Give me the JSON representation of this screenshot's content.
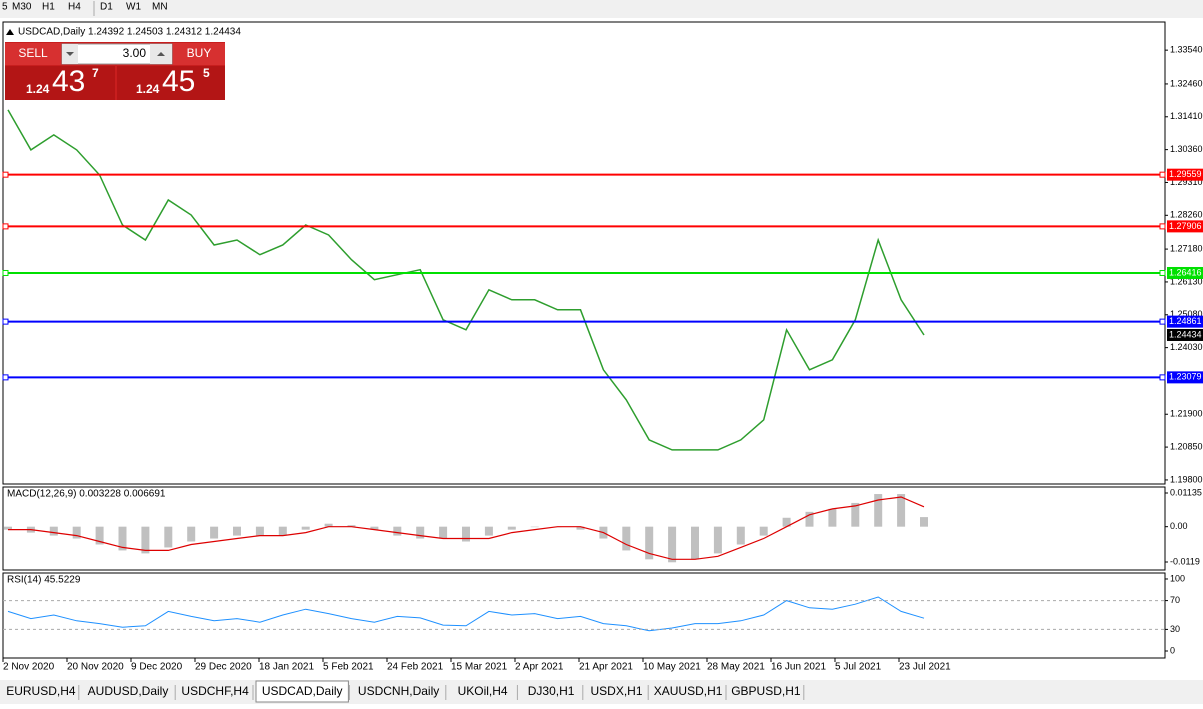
{
  "toolbar": [
    "5",
    "M30",
    "H1",
    "H4",
    "D1",
    "W1",
    "MN"
  ],
  "trade_panel": {
    "sell": "SELL",
    "buy": "BUY",
    "volume": "3.00",
    "sell_price": {
      "big": "1.24",
      "pips": "43",
      "point": "7"
    },
    "buy_price": {
      "big": "1.24",
      "pips": "45",
      "point": "5"
    }
  },
  "chart_data": [
    {
      "type": "line",
      "title": "USDCAD,Daily  1.24392 1.24503 1.24312 1.24434",
      "color": "#2e9e2e",
      "values": [
        1.3163,
        1.3035,
        1.3083,
        1.3035,
        1.2955,
        1.2795,
        1.2747,
        1.2875,
        1.2827,
        1.2731,
        1.2747,
        1.27,
        1.2731,
        1.2795,
        1.2763,
        1.2684,
        1.262,
        1.2636,
        1.2652,
        1.2492,
        1.246,
        1.2588,
        1.2556,
        1.2556,
        1.2524,
        1.2524,
        1.2332,
        1.2236,
        1.2108,
        1.2076,
        1.2076,
        1.2076,
        1.2108,
        1.2172,
        1.246,
        1.2332,
        1.2364,
        1.2492,
        1.2747,
        1.2556,
        1.24434
      ],
      "ylim": [
        1.1967,
        1.3444
      ],
      "yticks": [
        {
          "value": 1.3354,
          "label": "1.33540"
        },
        {
          "value": 1.3246,
          "label": "1.32460"
        },
        {
          "value": 1.3141,
          "label": "1.31410"
        },
        {
          "value": 1.3036,
          "label": "1.30360"
        },
        {
          "value": 1.2931,
          "label": "1.29310"
        },
        {
          "value": 1.2826,
          "label": "1.28260"
        },
        {
          "value": 1.2718,
          "label": "1.27180"
        },
        {
          "value": 1.2613,
          "label": "1.26130"
        },
        {
          "value": 1.2508,
          "label": "1.25080"
        },
        {
          "value": 1.2403,
          "label": "1.24030"
        },
        {
          "value": 1.219,
          "label": "1.21900"
        },
        {
          "value": 1.2085,
          "label": "1.20850"
        },
        {
          "value": 1.198,
          "label": "1.19800"
        }
      ],
      "levels": [
        1.29559,
        1.27906,
        1.26416,
        1.24861,
        1.23079
      ],
      "level_colors": [
        "#ff0000",
        "#ff0000",
        "#00e000",
        "#0000ff",
        "#0000ff"
      ],
      "last": 1.24434,
      "x_labels": [
        "2 Nov 2020",
        "20 Nov 2020",
        "9 Dec 2020",
        "29 Dec 2020",
        "18 Jan 2021",
        "5 Feb 2021",
        "24 Feb 2021",
        "15 Mar 2021",
        "2 Apr 2021",
        "21 Apr 2021",
        "10 May 2021",
        "28 May 2021",
        "16 Jun 2021",
        "5 Jul 2021",
        "23 Jul 2021"
      ]
    },
    {
      "type": "bar",
      "title": "MACD(12,26,9) 0.003228 0.006691",
      "color": "#c0c0c0",
      "values": [
        -0.001,
        -0.002,
        -0.003,
        -0.004,
        -0.006,
        -0.008,
        -0.009,
        -0.007,
        -0.005,
        -0.004,
        -0.003,
        -0.003,
        -0.003,
        -0.001,
        0.001,
        0.0005,
        -0.001,
        -0.003,
        -0.004,
        -0.004,
        -0.005,
        -0.003,
        -0.001,
        0,
        0,
        -0.001,
        -0.004,
        -0.008,
        -0.011,
        -0.012,
        -0.011,
        -0.009,
        -0.006,
        -0.003,
        0.003,
        0.005,
        0.006,
        0.008,
        0.011,
        0.011,
        0.003228
      ],
      "signal": [
        -0.001,
        -0.001,
        -0.002,
        -0.003,
        -0.005,
        -0.007,
        -0.008,
        -0.008,
        -0.006,
        -0.005,
        -0.004,
        -0.003,
        -0.003,
        -0.002,
        0,
        0,
        -0.001,
        -0.002,
        -0.003,
        -0.004,
        -0.004,
        -0.004,
        -0.002,
        -0.001,
        0,
        0,
        -0.002,
        -0.006,
        -0.009,
        -0.011,
        -0.011,
        -0.01,
        -0.007,
        -0.004,
        0,
        0.004,
        0.006,
        0.007,
        0.009,
        0.01,
        0.006691
      ],
      "signal_color": "#dd0000",
      "ylim": [
        -0.0146,
        0.01337
      ],
      "yticks": [
        0.01135,
        {
          "value": 0,
          "label": "0.00"
        },
        -0.0119
      ]
    },
    {
      "type": "line",
      "title": "RSI(14) 45.5229",
      "color": "#1e90ff",
      "values": [
        55,
        45,
        50,
        42,
        38,
        33,
        35,
        55,
        48,
        42,
        45,
        40,
        50,
        58,
        52,
        45,
        40,
        48,
        46,
        36,
        35,
        55,
        50,
        52,
        45,
        48,
        38,
        35,
        28,
        32,
        38,
        38,
        42,
        50,
        70,
        60,
        58,
        65,
        75,
        55,
        45.5229
      ],
      "ylim": [
        -9.7,
        108.3
      ],
      "yticks": [
        100,
        70,
        30,
        0
      ],
      "levels": [
        70,
        30
      ]
    }
  ],
  "tabs": [
    "EURUSD,H4",
    "AUDUSD,Daily",
    "USDCHF,H4",
    "USDCAD,Daily",
    "USDCNH,Daily",
    "UKOil,H4",
    "DJ30,H1",
    "USDX,H1",
    "XAUUSD,H1",
    "GBPUSD,H1"
  ],
  "active_tab": "USDCAD,Daily"
}
